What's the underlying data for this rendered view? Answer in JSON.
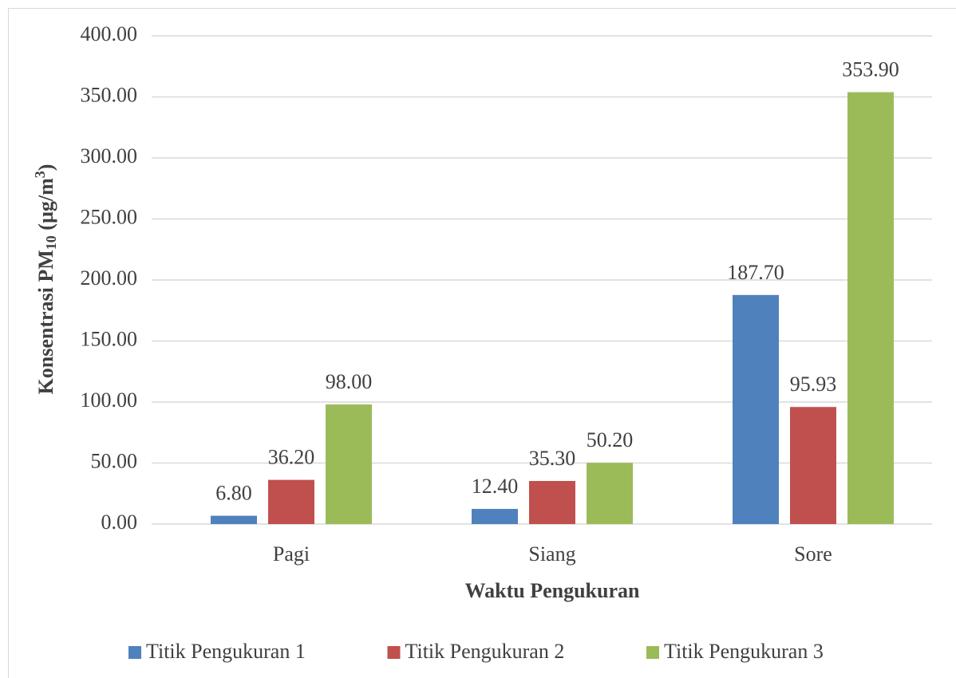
{
  "chart_data": {
    "type": "bar",
    "x_label": "Waktu Pengukuran",
    "y_label": [
      "Konsentrasi PM",
      "10",
      " (µg/m",
      "3",
      ")"
    ],
    "categories": [
      "Pagi",
      "Siang",
      "Sore"
    ],
    "series": [
      {
        "name": "Titik Pengukuran 1",
        "color": "#4f81bd",
        "values": [
          6.8,
          12.4,
          187.7
        ],
        "value_labels": [
          "6.80",
          "12.40",
          "187.70"
        ]
      },
      {
        "name": "Titik Pengukuran 2",
        "color": "#c0504d",
        "values": [
          36.2,
          35.3,
          95.93
        ],
        "value_labels": [
          "36.20",
          "35.30",
          "95.93"
        ]
      },
      {
        "name": "Titik Pengukuran 3",
        "color": "#9bbb59",
        "values": [
          98.0,
          50.2,
          353.9
        ],
        "value_labels": [
          "98.00",
          "50.20",
          "353.90"
        ]
      }
    ],
    "ylim": [
      0,
      400
    ],
    "yticks": [
      {
        "value": 0,
        "label": "0.00"
      },
      {
        "value": 50,
        "label": "50.00"
      },
      {
        "value": 100,
        "label": "100.00"
      },
      {
        "value": 150,
        "label": "150.00"
      },
      {
        "value": 200,
        "label": "200.00"
      },
      {
        "value": 250,
        "label": "250.00"
      },
      {
        "value": 300,
        "label": "300.00"
      },
      {
        "value": 350,
        "label": "350.00"
      },
      {
        "value": 400,
        "label": "400.00"
      }
    ],
    "grid": true,
    "legend": "bottom"
  }
}
